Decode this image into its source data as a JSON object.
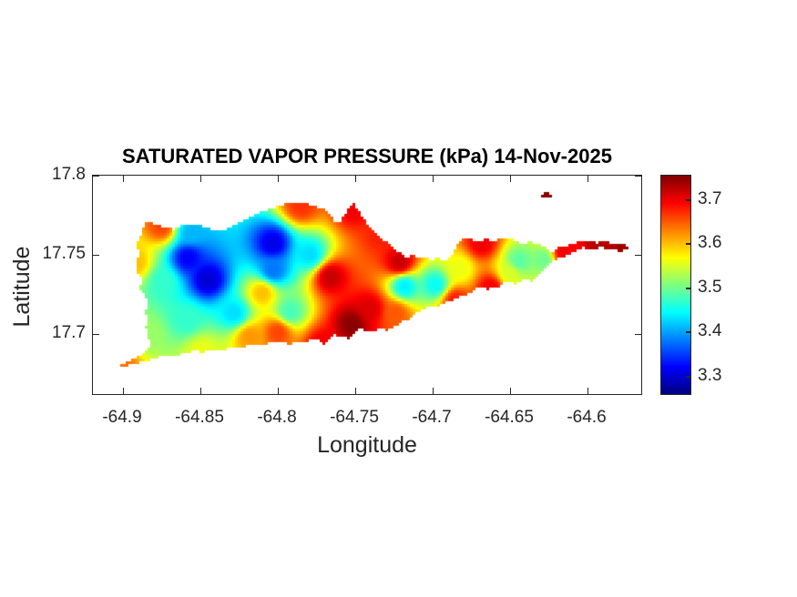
{
  "figure": {
    "title": "SATURATED VAPOR PRESSURE (kPa) 14-Nov-2025"
  },
  "axes": {
    "xlabel": "Longitude",
    "ylabel": "Latitude",
    "x_ticks": [
      {
        "value": -64.9,
        "label": "-64.9"
      },
      {
        "value": -64.85,
        "label": "-64.85"
      },
      {
        "value": -64.8,
        "label": "-64.8"
      },
      {
        "value": -64.75,
        "label": "-64.75"
      },
      {
        "value": -64.7,
        "label": "-64.7"
      },
      {
        "value": -64.65,
        "label": "-64.65"
      },
      {
        "value": -64.6,
        "label": "-64.6"
      }
    ],
    "y_ticks": [
      {
        "value": 17.8,
        "label": "17.8"
      },
      {
        "value": 17.75,
        "label": "17.75"
      },
      {
        "value": 17.7,
        "label": "17.7"
      }
    ]
  },
  "colorbar": {
    "ticks": [
      {
        "value": 3.3,
        "label": "3.3"
      },
      {
        "value": 3.4,
        "label": "3.4"
      },
      {
        "value": 3.5,
        "label": "3.5"
      },
      {
        "value": 3.6,
        "label": "3.6"
      },
      {
        "value": 3.7,
        "label": "3.7"
      }
    ]
  },
  "colors": {
    "axis_text": "#262626",
    "title_text": "#000000",
    "background": "#ffffff"
  },
  "chart_data": {
    "type": "heatmap",
    "title": "SATURATED VAPOR PRESSURE (kPa) 14-Nov-2025",
    "xlabel": "Longitude",
    "ylabel": "Latitude",
    "units": "kPa",
    "date": "14-Nov-2025",
    "colormap": "jet",
    "grid": false,
    "xlim": [
      -64.9195,
      -64.565
    ],
    "ylim": [
      17.662,
      17.8
    ],
    "clim": [
      3.26,
      3.755
    ],
    "stations": [
      {
        "lon": -64.858,
        "lat": 17.748,
        "value": 3.32
      },
      {
        "lon": -64.845,
        "lat": 17.734,
        "value": 3.3
      },
      {
        "lon": -64.803,
        "lat": 17.757,
        "value": 3.31
      },
      {
        "lon": -64.828,
        "lat": 17.713,
        "value": 3.43
      },
      {
        "lon": -64.859,
        "lat": 17.709,
        "value": 3.47
      },
      {
        "lon": -64.892,
        "lat": 17.745,
        "value": 3.6
      },
      {
        "lon": -64.875,
        "lat": 17.768,
        "value": 3.66
      },
      {
        "lon": -64.785,
        "lat": 17.781,
        "value": 3.67
      },
      {
        "lon": -64.751,
        "lat": 17.78,
        "value": 3.7
      },
      {
        "lon": -64.766,
        "lat": 17.736,
        "value": 3.72
      },
      {
        "lon": -64.752,
        "lat": 17.706,
        "value": 3.75
      },
      {
        "lon": -64.792,
        "lat": 17.714,
        "value": 3.48
      },
      {
        "lon": -64.8,
        "lat": 17.701,
        "value": 3.66
      },
      {
        "lon": -64.771,
        "lat": 17.693,
        "value": 3.7
      },
      {
        "lon": -64.901,
        "lat": 17.68,
        "value": 3.64
      },
      {
        "lon": -64.849,
        "lat": 17.689,
        "value": 3.56
      },
      {
        "lon": -64.718,
        "lat": 17.73,
        "value": 3.44
      },
      {
        "lon": -64.698,
        "lat": 17.731,
        "value": 3.45
      },
      {
        "lon": -64.721,
        "lat": 17.745,
        "value": 3.72
      },
      {
        "lon": -64.685,
        "lat": 17.721,
        "value": 3.68
      },
      {
        "lon": -64.662,
        "lat": 17.729,
        "value": 3.7
      },
      {
        "lon": -64.668,
        "lat": 17.757,
        "value": 3.7
      },
      {
        "lon": -64.644,
        "lat": 17.746,
        "value": 3.49
      },
      {
        "lon": -64.628,
        "lat": 17.747,
        "value": 3.5
      },
      {
        "lon": -64.591,
        "lat": 17.755,
        "value": 3.73
      },
      {
        "lon": -64.574,
        "lat": 17.754,
        "value": 3.74
      },
      {
        "lon": -64.732,
        "lat": 17.763,
        "value": 3.68
      },
      {
        "lon": -64.803,
        "lat": 17.74,
        "value": 3.38
      },
      {
        "lon": -64.779,
        "lat": 17.75,
        "value": 3.43
      },
      {
        "lon": -64.724,
        "lat": 17.713,
        "value": 3.65
      },
      {
        "lon": -64.682,
        "lat": 17.741,
        "value": 3.56
      },
      {
        "lon": -64.65,
        "lat": 17.738,
        "value": 3.55
      },
      {
        "lon": -64.615,
        "lat": 17.751,
        "value": 3.7
      },
      {
        "lon": -64.856,
        "lat": 17.764,
        "value": 3.41
      },
      {
        "lon": -64.874,
        "lat": 17.733,
        "value": 3.47
      },
      {
        "lon": -64.626,
        "lat": 17.787,
        "value": 3.75
      },
      {
        "lon": -64.884,
        "lat": 17.7,
        "value": 3.52
      },
      {
        "lon": -64.818,
        "lat": 17.698,
        "value": 3.62
      },
      {
        "lon": -64.81,
        "lat": 17.726,
        "value": 3.6
      },
      {
        "lon": -64.74,
        "lat": 17.716,
        "value": 3.71
      }
    ],
    "island_outline": [
      [
        -64.8853,
        17.7713
      ],
      [
        -64.8765,
        17.7684
      ],
      [
        -64.8676,
        17.7661
      ],
      [
        -64.8588,
        17.7695
      ],
      [
        -64.85,
        17.7684
      ],
      [
        -64.84,
        17.7655
      ],
      [
        -64.831,
        17.7667
      ],
      [
        -64.822,
        17.7718
      ],
      [
        -64.8135,
        17.7764
      ],
      [
        -64.8047,
        17.7793
      ],
      [
        -64.7953,
        17.7822
      ],
      [
        -64.7841,
        17.7833
      ],
      [
        -64.7753,
        17.7805
      ],
      [
        -64.7694,
        17.7787
      ],
      [
        -64.7659,
        17.7759
      ],
      [
        -64.7635,
        17.7713
      ],
      [
        -64.7606,
        17.7701
      ],
      [
        -64.7576,
        17.7741
      ],
      [
        -64.7541,
        17.7799
      ],
      [
        -64.7506,
        17.7822
      ],
      [
        -64.7476,
        17.7782
      ],
      [
        -64.7429,
        17.7707
      ],
      [
        -64.7371,
        17.7649
      ],
      [
        -64.7312,
        17.7592
      ],
      [
        -64.7253,
        17.754
      ],
      [
        -64.7206,
        17.7511
      ],
      [
        -64.7165,
        17.7477
      ],
      [
        -64.7129,
        17.75
      ],
      [
        -64.7094,
        17.7471
      ],
      [
        -64.7053,
        17.7494
      ],
      [
        -64.7012,
        17.7466
      ],
      [
        -64.6965,
        17.7483
      ],
      [
        -64.6918,
        17.746
      ],
      [
        -64.6876,
        17.7483
      ],
      [
        -64.6847,
        17.7546
      ],
      [
        -64.6818,
        17.7592
      ],
      [
        -64.6759,
        17.7603
      ],
      [
        -64.67,
        17.758
      ],
      [
        -64.6641,
        17.7603
      ],
      [
        -64.6606,
        17.758
      ],
      [
        -64.6559,
        17.7603
      ],
      [
        -64.6488,
        17.7598
      ],
      [
        -64.6429,
        17.7569
      ],
      [
        -64.6365,
        17.758
      ],
      [
        -64.6312,
        17.7563
      ],
      [
        -64.6265,
        17.754
      ],
      [
        -64.6224,
        17.7517
      ],
      [
        -64.6182,
        17.7546
      ],
      [
        -64.6135,
        17.7557
      ],
      [
        -64.6076,
        17.7575
      ],
      [
        -64.6,
        17.7592
      ],
      [
        -64.5941,
        17.7575
      ],
      [
        -64.5882,
        17.7586
      ],
      [
        -64.5818,
        17.7569
      ],
      [
        -64.5759,
        17.7563
      ],
      [
        -64.5729,
        17.754
      ],
      [
        -64.5771,
        17.7523
      ],
      [
        -64.5841,
        17.7529
      ],
      [
        -64.5912,
        17.7546
      ],
      [
        -64.5971,
        17.7529
      ],
      [
        -64.6029,
        17.7546
      ],
      [
        -64.6088,
        17.7517
      ],
      [
        -64.6141,
        17.7489
      ],
      [
        -64.6194,
        17.7477
      ],
      [
        -64.6235,
        17.7454
      ],
      [
        -64.6276,
        17.7414
      ],
      [
        -64.6312,
        17.7368
      ],
      [
        -64.6353,
        17.7333
      ],
      [
        -64.6412,
        17.7345
      ],
      [
        -64.6465,
        17.7316
      ],
      [
        -64.6524,
        17.7328
      ],
      [
        -64.6582,
        17.7293
      ],
      [
        -64.6641,
        17.7282
      ],
      [
        -64.67,
        17.7293
      ],
      [
        -64.6759,
        17.7259
      ],
      [
        -64.6818,
        17.7236
      ],
      [
        -64.6876,
        17.7213
      ],
      [
        -64.6929,
        17.7195
      ],
      [
        -64.6976,
        17.7167
      ],
      [
        -64.7024,
        17.7178
      ],
      [
        -64.7071,
        17.7144
      ],
      [
        -64.7118,
        17.7121
      ],
      [
        -64.7159,
        17.7086
      ],
      [
        -64.72,
        17.7075
      ],
      [
        -64.7247,
        17.7046
      ],
      [
        -64.7294,
        17.7023
      ],
      [
        -64.7341,
        17.7034
      ],
      [
        -64.7388,
        17.7006
      ],
      [
        -64.7429,
        17.7023
      ],
      [
        -64.7471,
        17.7034
      ],
      [
        -64.7506,
        17.7
      ],
      [
        -64.7541,
        17.6966
      ],
      [
        -64.7582,
        17.6983
      ],
      [
        -64.7629,
        17.6994
      ],
      [
        -64.7671,
        17.6966
      ],
      [
        -64.7706,
        17.6925
      ],
      [
        -64.7735,
        17.696
      ],
      [
        -64.7776,
        17.6971
      ],
      [
        -64.7824,
        17.6948
      ],
      [
        -64.7876,
        17.6943
      ],
      [
        -64.7929,
        17.6937
      ],
      [
        -64.7982,
        17.6954
      ],
      [
        -64.8041,
        17.6943
      ],
      [
        -64.81,
        17.6931
      ],
      [
        -64.8165,
        17.6937
      ],
      [
        -64.8229,
        17.6914
      ],
      [
        -64.8294,
        17.692
      ],
      [
        -64.8359,
        17.6897
      ],
      [
        -64.8424,
        17.6902
      ],
      [
        -64.8488,
        17.6885
      ],
      [
        -64.8553,
        17.6891
      ],
      [
        -64.8618,
        17.6874
      ],
      [
        -64.8676,
        17.6862
      ],
      [
        -64.8735,
        17.6868
      ],
      [
        -64.8788,
        17.6845
      ],
      [
        -64.8841,
        17.6833
      ],
      [
        -64.89,
        17.6816
      ],
      [
        -64.8953,
        17.6805
      ],
      [
        -64.9006,
        17.6787
      ],
      [
        -64.9012,
        17.6805
      ],
      [
        -64.8959,
        17.6833
      ],
      [
        -64.89,
        17.6856
      ],
      [
        -64.8853,
        17.6885
      ],
      [
        -64.8829,
        17.6925
      ],
      [
        -64.8835,
        17.6983
      ],
      [
        -64.8853,
        17.704
      ],
      [
        -64.8835,
        17.7098
      ],
      [
        -64.8865,
        17.7144
      ],
      [
        -64.8829,
        17.719
      ],
      [
        -64.8853,
        17.7236
      ],
      [
        -64.8894,
        17.7282
      ],
      [
        -64.8876,
        17.7339
      ],
      [
        -64.8912,
        17.7397
      ],
      [
        -64.8918,
        17.7454
      ],
      [
        -64.8894,
        17.7511
      ],
      [
        -64.8918,
        17.7557
      ],
      [
        -64.8888,
        17.7615
      ],
      [
        -64.8871,
        17.7672
      ]
    ],
    "buck_island_outline": [
      [
        -64.6306,
        17.7868
      ],
      [
        -64.6282,
        17.7891
      ],
      [
        -64.6253,
        17.7891
      ],
      [
        -64.6229,
        17.7879
      ],
      [
        -64.6218,
        17.7862
      ],
      [
        -64.6253,
        17.786
      ],
      [
        -64.6288,
        17.7856
      ]
    ]
  }
}
